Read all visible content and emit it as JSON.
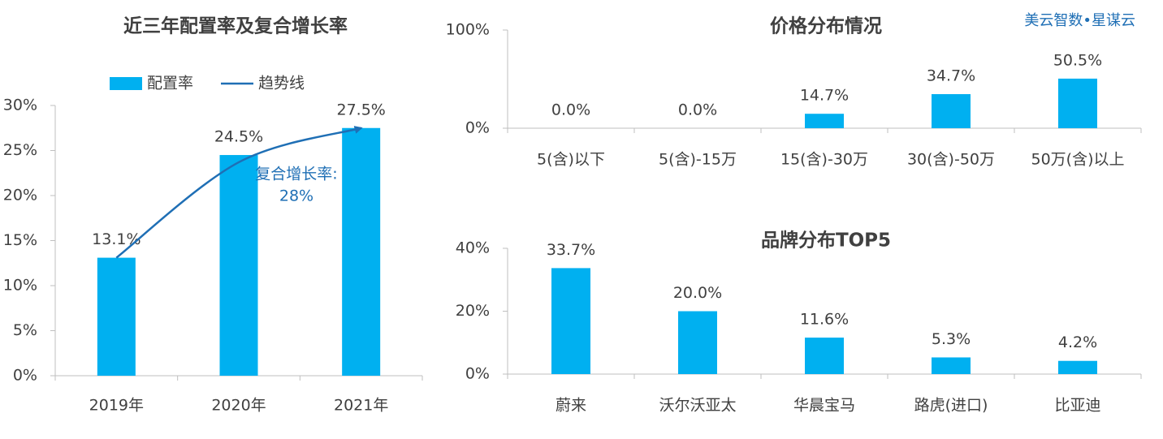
{
  "watermark": "美云智数•星谋云",
  "chart_data": [
    {
      "type": "bar",
      "title": "近三年配置率及复合增长率",
      "categories": [
        "2019年",
        "2020年",
        "2021年"
      ],
      "series": [
        {
          "name": "配置率",
          "type": "bar",
          "color": "#00b0f0",
          "values": [
            13.1,
            24.5,
            27.5
          ],
          "value_labels": [
            "13.1%",
            "24.5%",
            "27.5%"
          ]
        },
        {
          "name": "趋势线",
          "type": "line",
          "color": "#1f6fb5",
          "values": [
            13.1,
            23.7,
            27.5
          ]
        }
      ],
      "annotations": [
        "复合增长率:",
        "28%"
      ],
      "ylim": [
        0,
        30
      ],
      "yticks": [
        {
          "value": 0,
          "label": "0%"
        },
        {
          "value": 5,
          "label": "5%"
        },
        {
          "value": 10,
          "label": "10%"
        },
        {
          "value": 15,
          "label": "15%"
        },
        {
          "value": 20,
          "label": "20%"
        },
        {
          "value": 25,
          "label": "25%"
        },
        {
          "value": 30,
          "label": "30%"
        }
      ],
      "legend": "top"
    },
    {
      "type": "bar",
      "title": "价格分布情况",
      "categories": [
        "5(含)以下",
        "5(含)-15万",
        "15(含)-30万",
        "30(含)-50万",
        "50万(含)以上"
      ],
      "values": [
        0,
        0,
        14.7,
        34.7,
        50.5
      ],
      "value_labels": [
        "0.0%",
        "0.0%",
        "14.7%",
        "34.7%",
        "50.5%"
      ],
      "color": "#00b0f0",
      "ylim": [
        0,
        100
      ],
      "yticks": [
        {
          "value": 0,
          "label": "0%"
        },
        {
          "value": 100,
          "label": "100%"
        }
      ]
    },
    {
      "type": "bar",
      "title": "品牌分布TOP5",
      "categories": [
        "蔚来",
        "沃尔沃亚太",
        "华晨宝马",
        "路虎(进口)",
        "比亚迪"
      ],
      "values": [
        33.7,
        20.0,
        11.6,
        5.3,
        4.2
      ],
      "value_labels": [
        "33.7%",
        "20.0%",
        "11.6%",
        "5.3%",
        "4.2%"
      ],
      "color": "#00b0f0",
      "ylim": [
        0,
        40
      ],
      "yticks": [
        {
          "value": 0,
          "label": "0%"
        },
        {
          "value": 20,
          "label": "20%"
        },
        {
          "value": 40,
          "label": "40%"
        }
      ]
    }
  ]
}
